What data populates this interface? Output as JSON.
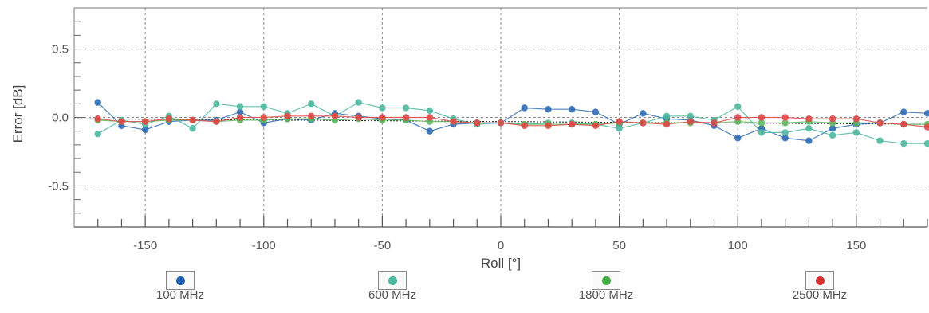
{
  "chart_data": {
    "type": "line",
    "title": "",
    "xlabel": "Roll [°]",
    "ylabel": "Error [dB]",
    "xlim": [
      -180,
      180
    ],
    "ylim": [
      -0.8,
      0.8
    ],
    "xticks": [
      -150,
      -100,
      -50,
      0,
      50,
      100,
      150
    ],
    "yticks": [
      -0.5,
      0.0,
      0.5
    ],
    "xtick_labels": [
      "-150",
      "-100",
      "-50",
      "0",
      "50",
      "100",
      "150"
    ],
    "ytick_labels": [
      "-0.5",
      "0.0",
      "0.5"
    ],
    "grid": true,
    "legend_position": "bottom",
    "x": [
      -170,
      -160,
      -150,
      -140,
      -130,
      -120,
      -110,
      -100,
      -90,
      -80,
      -70,
      -60,
      -50,
      -40,
      -30,
      -20,
      -10,
      0,
      10,
      20,
      30,
      40,
      50,
      60,
      70,
      80,
      90,
      100,
      110,
      120,
      130,
      140,
      150,
      160,
      170,
      180
    ],
    "series": [
      {
        "name": "100 MHz",
        "color": "#2f6db5",
        "values": [
          0.11,
          -0.06,
          -0.09,
          -0.03,
          -0.02,
          -0.02,
          0.04,
          -0.04,
          -0.01,
          -0.02,
          0.03,
          0.01,
          -0.01,
          -0.02,
          -0.1,
          -0.05,
          -0.04,
          -0.04,
          0.07,
          0.06,
          0.06,
          0.04,
          -0.05,
          0.03,
          -0.01,
          -0.02,
          -0.06,
          -0.15,
          -0.08,
          -0.15,
          -0.17,
          -0.08,
          -0.05,
          -0.04,
          0.04,
          0.03
        ]
      },
      {
        "name": "600 MHz",
        "color": "#4fb8a0",
        "values": [
          -0.12,
          -0.02,
          -0.05,
          0.01,
          -0.08,
          0.1,
          0.08,
          0.08,
          0.03,
          0.1,
          0.01,
          0.11,
          0.07,
          0.07,
          0.05,
          -0.01,
          -0.05,
          -0.04,
          -0.05,
          -0.04,
          -0.04,
          -0.05,
          -0.08,
          -0.04,
          0.01,
          0.01,
          -0.02,
          0.08,
          -0.11,
          -0.11,
          -0.08,
          -0.13,
          -0.11,
          -0.17,
          -0.19,
          -0.19
        ]
      },
      {
        "name": "1800 MHz",
        "color": "#5cb85c",
        "values": [
          -0.02,
          -0.03,
          -0.03,
          -0.02,
          -0.02,
          -0.03,
          -0.02,
          -0.02,
          -0.01,
          -0.01,
          -0.02,
          -0.01,
          -0.02,
          -0.02,
          -0.03,
          -0.03,
          -0.04,
          -0.04,
          -0.05,
          -0.05,
          -0.05,
          -0.05,
          -0.04,
          -0.04,
          -0.04,
          -0.04,
          -0.04,
          -0.03,
          -0.04,
          -0.04,
          -0.03,
          -0.04,
          -0.04,
          -0.04,
          -0.05,
          -0.05
        ]
      },
      {
        "name": "2500 MHz",
        "color": "#e04848",
        "values": [
          -0.01,
          -0.03,
          -0.03,
          -0.01,
          -0.02,
          -0.03,
          0.0,
          0.0,
          0.01,
          0.01,
          0.01,
          0.0,
          0.0,
          0.0,
          0.0,
          -0.03,
          -0.04,
          -0.04,
          -0.06,
          -0.06,
          -0.05,
          -0.06,
          -0.03,
          -0.04,
          -0.05,
          -0.03,
          -0.04,
          0.0,
          0.0,
          0.0,
          -0.01,
          -0.01,
          -0.01,
          -0.04,
          -0.05,
          -0.07
        ]
      }
    ]
  },
  "legend": [
    {
      "label": "100 MHz",
      "color": "#1f5fb0"
    },
    {
      "label": "600 MHz",
      "color": "#4fb8a0"
    },
    {
      "label": "1800 MHz",
      "color": "#44aa44"
    },
    {
      "label": "2500 MHz",
      "color": "#d93030"
    }
  ]
}
